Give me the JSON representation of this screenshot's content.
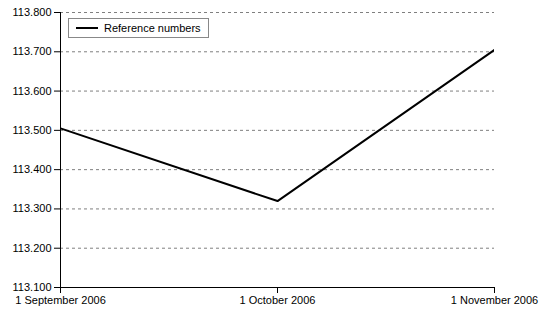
{
  "chart_data": {
    "type": "line",
    "categories": [
      "1 September 2006",
      "1 October 2006",
      "1 November 2006"
    ],
    "series": [
      {
        "name": "Reference numbers",
        "color": "#000000",
        "values": [
          113.505,
          113.32,
          113.705
        ]
      }
    ],
    "ylim": [
      113.1,
      113.8
    ],
    "yticks": [
      {
        "value": 113.1,
        "label": "113.100"
      },
      {
        "value": 113.2,
        "label": "113.200"
      },
      {
        "value": 113.3,
        "label": "113.300"
      },
      {
        "value": 113.4,
        "label": "113.400"
      },
      {
        "value": 113.5,
        "label": "113.500"
      },
      {
        "value": 113.6,
        "label": "113.600"
      },
      {
        "value": 113.7,
        "label": "113.700"
      },
      {
        "value": 113.8,
        "label": "113.800"
      }
    ],
    "grid": true,
    "legend": "upper left"
  }
}
